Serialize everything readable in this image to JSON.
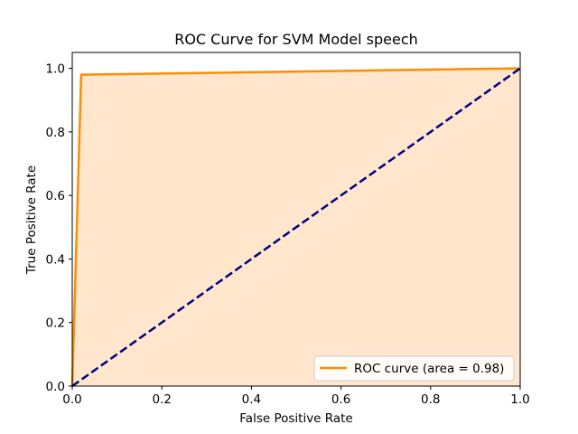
{
  "chart_data": {
    "type": "line",
    "title": "ROC Curve for SVM Model speech",
    "xlabel": "False Positive Rate",
    "ylabel": "True Positive Rate",
    "xlim": [
      0.0,
      1.0
    ],
    "ylim": [
      0.0,
      1.05
    ],
    "xticks": [
      0.0,
      0.2,
      0.4,
      0.6,
      0.8,
      1.0
    ],
    "yticks": [
      0.0,
      0.2,
      0.4,
      0.6,
      0.8,
      1.0
    ],
    "xtick_labels": [
      "0.0",
      "0.2",
      "0.4",
      "0.6",
      "0.8",
      "1.0"
    ],
    "ytick_labels": [
      "0.0",
      "0.2",
      "0.4",
      "0.6",
      "0.8",
      "1.0"
    ],
    "grid": false,
    "legend_position": "lower-right",
    "series": [
      {
        "name": "ROC curve (area = 0.98)",
        "x": [
          0.0,
          0.02,
          1.0
        ],
        "y": [
          0.0,
          0.98,
          1.0
        ],
        "color": "#ff8c00",
        "fill_color": "#ffe6cc",
        "style": "solid",
        "area_fill": true
      },
      {
        "x": [
          0.0,
          1.0
        ],
        "y": [
          0.0,
          1.0
        ],
        "color": "#000080",
        "style": "dashed"
      }
    ]
  }
}
